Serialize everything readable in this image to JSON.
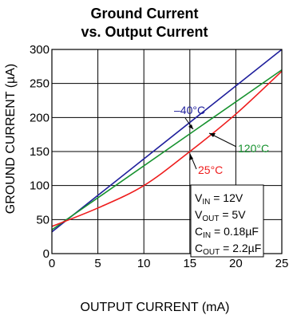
{
  "chart_data": {
    "type": "line",
    "title": [
      "Ground Current",
      "vs. Output Current"
    ],
    "xlabel": "OUTPUT CURRENT (mA)",
    "ylabel": "GROUND CURRENT (µA)",
    "xlim": [
      0,
      25
    ],
    "ylim": [
      0,
      300
    ],
    "xticks": [
      "0",
      "5",
      "10",
      "15",
      "20",
      "25"
    ],
    "yticks": [
      "0",
      "50",
      "100",
      "150",
      "200",
      "250",
      "300"
    ],
    "grid": true,
    "series": [
      {
        "name": "–40°C",
        "color": "#1f1f9c",
        "x": [
          0,
          25
        ],
        "y": [
          32,
          300
        ]
      },
      {
        "name": "120°C",
        "color": "#17922f",
        "x": [
          0,
          25
        ],
        "y": [
          35,
          270
        ]
      },
      {
        "name": "25°C",
        "color": "#ee1c1c",
        "x": [
          0,
          5,
          10,
          15,
          20,
          25
        ],
        "y": [
          40,
          67,
          100,
          150,
          205,
          268
        ]
      }
    ],
    "conditions": [
      "V_IN = 12V",
      "V_OUT = 5V",
      "C_IN = 0.18µF",
      "C_OUT = 2.2µF"
    ]
  }
}
